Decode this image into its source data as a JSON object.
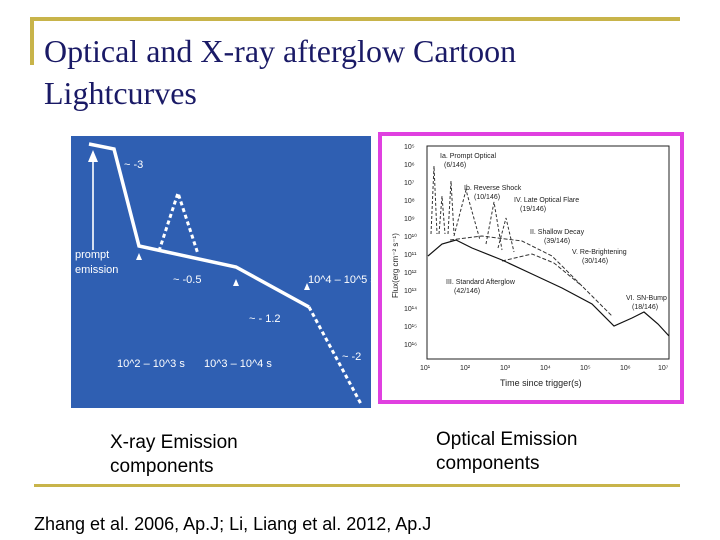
{
  "slide": {
    "title_line1": "Optical and X-ray afterglow Cartoon",
    "title_line2": "Lightcurves",
    "xray_caption_line1": "X-ray Emission",
    "xray_caption_line2": "components",
    "optical_caption_line1": "Optical Emission",
    "optical_caption_line2": "components",
    "citation": "Zhang et al. 2006, Ap.J;   Li, Liang et al. 2012, Ap.J"
  },
  "xray_diagram": {
    "slope_1": "~ -3",
    "slope_2": "~ -0.5",
    "slope_3": "~ - 1.2",
    "slope_4": "~ -2",
    "prompt_line1": "prompt",
    "prompt_line2": "emission",
    "time_1": "10^2 – 10^3 s",
    "time_2": "10^3 – 10^4 s",
    "time_3": "10^4 – 10^5 s"
  },
  "optical_diagram": {
    "ylabel": "Flux(erg cm⁻² s⁻¹)",
    "xlabel": "Time since trigger(s)",
    "y_ticks": [
      "10⁵",
      "10⁶",
      "10⁷",
      "10⁸",
      "10⁹",
      "10¹⁰",
      "10¹¹",
      "10¹²",
      "10¹³",
      "10¹⁴",
      "10¹⁵",
      "10¹⁶"
    ],
    "x_ticks": [
      "10¹",
      "10²",
      "10³",
      "10⁴",
      "10⁵",
      "10⁶",
      "10⁷"
    ],
    "labels": {
      "ia": "Ia. Prompt Optical",
      "ia_count": "(6/146)",
      "ib": "Ib. Reverse Shock",
      "ib_count": "(10/146)",
      "iv": "IV. Late Optical Flare",
      "iv_count": "(19/146)",
      "ii": "II. Shallow Decay",
      "ii_count": "(39/146)",
      "v": "V. Re-Brightening",
      "v_count": "(30/146)",
      "iii": "III. Standard Afterglow",
      "iii_count": "(42/146)",
      "vi": "VI. SN-Bump",
      "vi_count": "(18/146)"
    }
  }
}
